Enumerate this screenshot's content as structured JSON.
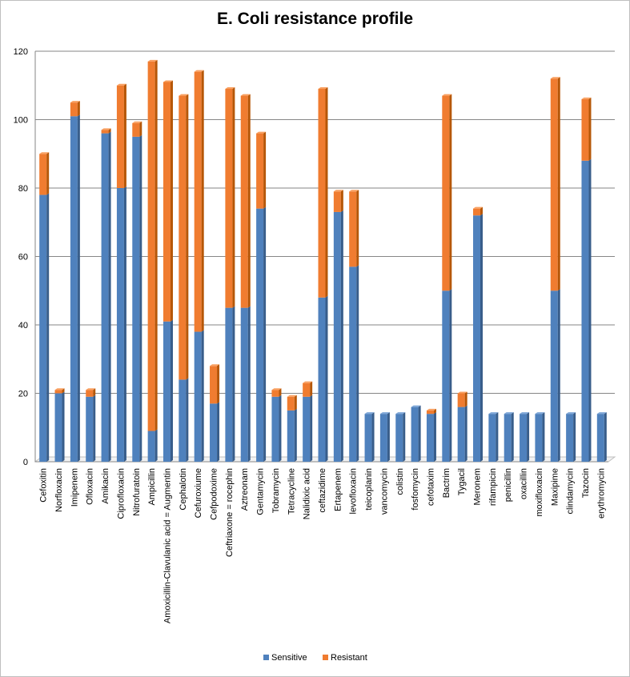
{
  "chart_data": {
    "type": "bar",
    "stacked": true,
    "title": "E. Coli resistance profile",
    "xlabel": "",
    "ylabel": "",
    "ylim": [
      0,
      120
    ],
    "yticks": [
      0,
      20,
      40,
      60,
      80,
      100,
      120
    ],
    "grid": true,
    "legend_position": "bottom",
    "categories": [
      "Cefoxitin",
      "Norfloxacin",
      "Imipenem",
      "Ofloxacin",
      "Amikacin",
      "Ciprofloxacin",
      "Nitrofuratoin",
      "Ampicillin",
      "Amoxicillin-Clavulanic acid = Augmentin",
      "Cephalotin",
      "Cefuroxiume",
      "Cefpodoxime",
      "Ceftriaxone = rocephin",
      "Aztreonam",
      "Gentamycin",
      "Tobramycin",
      "Tetracycline",
      "Nalidixic acid",
      "ceftazidime",
      "Ertapenem",
      "levofloxacin",
      "teicoplanin",
      "vancomycin",
      "colistin",
      "fosfomycin",
      "cefotaxim",
      "Bactrim",
      "Tygacil",
      "Meronem",
      "rifampicin",
      "penicillin",
      "oxacillin",
      "moxifloxacin",
      "Maxipime",
      "clindamycin",
      "Tazocin",
      "erythromycin"
    ],
    "series": [
      {
        "name": "Sensitive",
        "color": "#4f81bd",
        "values": [
          78,
          20,
          101,
          19,
          96,
          80,
          95,
          9,
          41,
          24,
          38,
          17,
          45,
          45,
          74,
          19,
          15,
          19,
          48,
          73,
          57,
          14,
          14,
          14,
          16,
          14,
          50,
          16,
          72,
          14,
          14,
          14,
          14,
          50,
          14,
          88,
          14
        ]
      },
      {
        "name": "Resistant",
        "color": "#f07c30",
        "values": [
          12,
          1,
          4,
          2,
          1,
          30,
          4,
          108,
          70,
          83,
          76,
          11,
          64,
          62,
          22,
          2,
          4,
          4,
          61,
          6,
          22,
          0,
          0,
          0,
          0,
          1,
          57,
          4,
          2,
          0,
          0,
          0,
          0,
          62,
          0,
          18,
          0
        ]
      }
    ]
  }
}
